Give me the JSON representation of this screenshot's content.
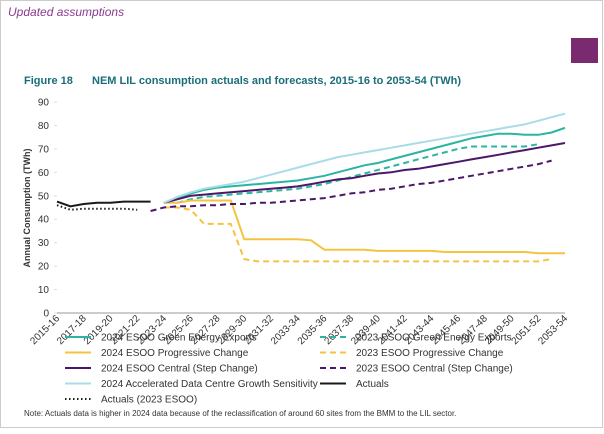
{
  "header": "Updated assumptions",
  "figure_label": "Figure 18",
  "note": "Note: Actuals data is higher in 2024 data because of the reclassification of around 60 sites from the BMM to the LIL sector.",
  "chart_data": {
    "type": "line",
    "title": "NEM LIL consumption actuals and forecasts, 2015-16 to 2053-54 (TWh)",
    "y_label": "Annual Consumption (TWh)",
    "categories": [
      "2015-16",
      null,
      "2017-18",
      null,
      "2019-20",
      null,
      "2021-22",
      null,
      "2023-24",
      null,
      "2025-26",
      null,
      "2027-28",
      null,
      "2029-30",
      null,
      "2031-32",
      null,
      "2033-34",
      null,
      "2035-36",
      null,
      "2037-38",
      null,
      "2039-40",
      null,
      "2041-42",
      null,
      "2043-44",
      null,
      "2045-46",
      null,
      "2047-48",
      null,
      "2049-50",
      null,
      "2051-52",
      null,
      "2053-54"
    ],
    "ylim": [
      0,
      90
    ],
    "yticks": [
      0,
      10,
      20,
      30,
      40,
      50,
      60,
      70,
      80,
      90
    ],
    "grid": false,
    "series": [
      {
        "name": "2024 ESOO Green Energy Exports",
        "color": "#2bb5a0",
        "dash": "solid",
        "values": [
          null,
          null,
          null,
          null,
          null,
          null,
          null,
          null,
          47,
          49,
          51,
          52.5,
          53.5,
          54,
          54.5,
          55,
          55.5,
          56,
          56.5,
          57.5,
          58.5,
          60,
          61.5,
          63,
          64,
          65.5,
          67,
          68.5,
          70,
          71.5,
          73,
          74.5,
          75.5,
          76.5,
          76.5,
          76,
          76,
          77,
          79
        ]
      },
      {
        "name": "2023 ESOO Green Energy Exports",
        "color": "#2bb5a0",
        "dash": "dashed",
        "values": [
          null,
          null,
          null,
          null,
          null,
          null,
          null,
          null,
          null,
          47,
          48.5,
          49.5,
          50,
          50.5,
          51,
          51.5,
          52,
          52.5,
          53,
          54,
          55,
          56.5,
          58,
          59.5,
          61,
          62.5,
          64,
          65.5,
          67,
          68.5,
          70,
          71,
          71,
          71,
          71,
          71,
          72,
          null,
          null
        ]
      },
      {
        "name": "2024 ESOO Progressive Change",
        "color": "#f5c342",
        "dash": "solid",
        "values": [
          null,
          null,
          null,
          null,
          null,
          null,
          null,
          null,
          47,
          47,
          48,
          48,
          48,
          48,
          31.5,
          31.5,
          31.5,
          31.5,
          31.5,
          31,
          27,
          27,
          27,
          27,
          26.5,
          26.5,
          26.5,
          26.5,
          26.5,
          26,
          26,
          26,
          26,
          26,
          26,
          26,
          25.5,
          25.5,
          25.5
        ]
      },
      {
        "name": "2023 ESOO Progressive Change",
        "color": "#f5c342",
        "dash": "dashed",
        "values": [
          null,
          null,
          null,
          null,
          null,
          null,
          null,
          null,
          45,
          45,
          44,
          38,
          38,
          38,
          23,
          22,
          22,
          22,
          22,
          22,
          22,
          22,
          22,
          22,
          22,
          22,
          22,
          22,
          22,
          22,
          22,
          22,
          22,
          22,
          22,
          22,
          22,
          23,
          null
        ]
      },
      {
        "name": "2024 ESOO Central (Step Change)",
        "color": "#4b1869",
        "dash": "solid",
        "values": [
          null,
          null,
          null,
          null,
          null,
          null,
          null,
          null,
          47,
          48.5,
          50,
          50.5,
          51,
          51.5,
          52,
          52.5,
          53,
          53.5,
          54,
          55,
          56,
          57,
          57.5,
          58.5,
          59.5,
          60,
          61,
          61.5,
          62.5,
          63.5,
          64.5,
          65.5,
          66.5,
          67.5,
          68.5,
          69.5,
          70.5,
          71.5,
          72.5
        ]
      },
      {
        "name": "2023 ESOO Central (Step Change)",
        "color": "#4b1869",
        "dash": "dashed",
        "values": [
          null,
          null,
          null,
          null,
          null,
          null,
          null,
          43.5,
          45,
          45.5,
          45.5,
          46,
          46,
          46.5,
          46.5,
          47,
          47,
          47.5,
          48,
          48.5,
          49,
          50,
          51,
          51.5,
          52.5,
          53,
          54,
          55,
          55.5,
          56.5,
          57.5,
          58.5,
          59.5,
          60.5,
          61.5,
          62.5,
          63.5,
          65,
          null
        ]
      },
      {
        "name": "2024 Accelerated Data Centre Growth Sensitivity",
        "color": "#a8dde8",
        "dash": "solid",
        "values": [
          null,
          null,
          null,
          null,
          null,
          null,
          null,
          null,
          47,
          49.5,
          51.5,
          53,
          54,
          55,
          56,
          57.5,
          59,
          60.5,
          62,
          63.5,
          65,
          66.5,
          67.5,
          68.5,
          69.5,
          70.5,
          71.5,
          72.5,
          73.5,
          74.5,
          75.5,
          76.5,
          77.5,
          78.5,
          79.5,
          80.5,
          82,
          83.5,
          85
        ]
      },
      {
        "name": "Actuals",
        "color": "#1a1a1a",
        "dash": "solid",
        "values": [
          47.5,
          45.5,
          46.5,
          47,
          47,
          47.5,
          47.5,
          47.5,
          null,
          null,
          null,
          null,
          null,
          null,
          null,
          null,
          null,
          null,
          null,
          null,
          null,
          null,
          null,
          null,
          null,
          null,
          null,
          null,
          null,
          null,
          null,
          null,
          null,
          null,
          null,
          null,
          null,
          null,
          null
        ]
      },
      {
        "name": "Actuals (2023 ESOO)",
        "color": "#1a1a1a",
        "dash": "dotted",
        "values": [
          46,
          44,
          44.5,
          44.5,
          44.5,
          44.5,
          44,
          null,
          null,
          null,
          null,
          null,
          null,
          null,
          null,
          null,
          null,
          null,
          null,
          null,
          null,
          null,
          null,
          null,
          null,
          null,
          null,
          null,
          null,
          null,
          null,
          null,
          null,
          null,
          null,
          null,
          null,
          null,
          null
        ]
      }
    ]
  }
}
